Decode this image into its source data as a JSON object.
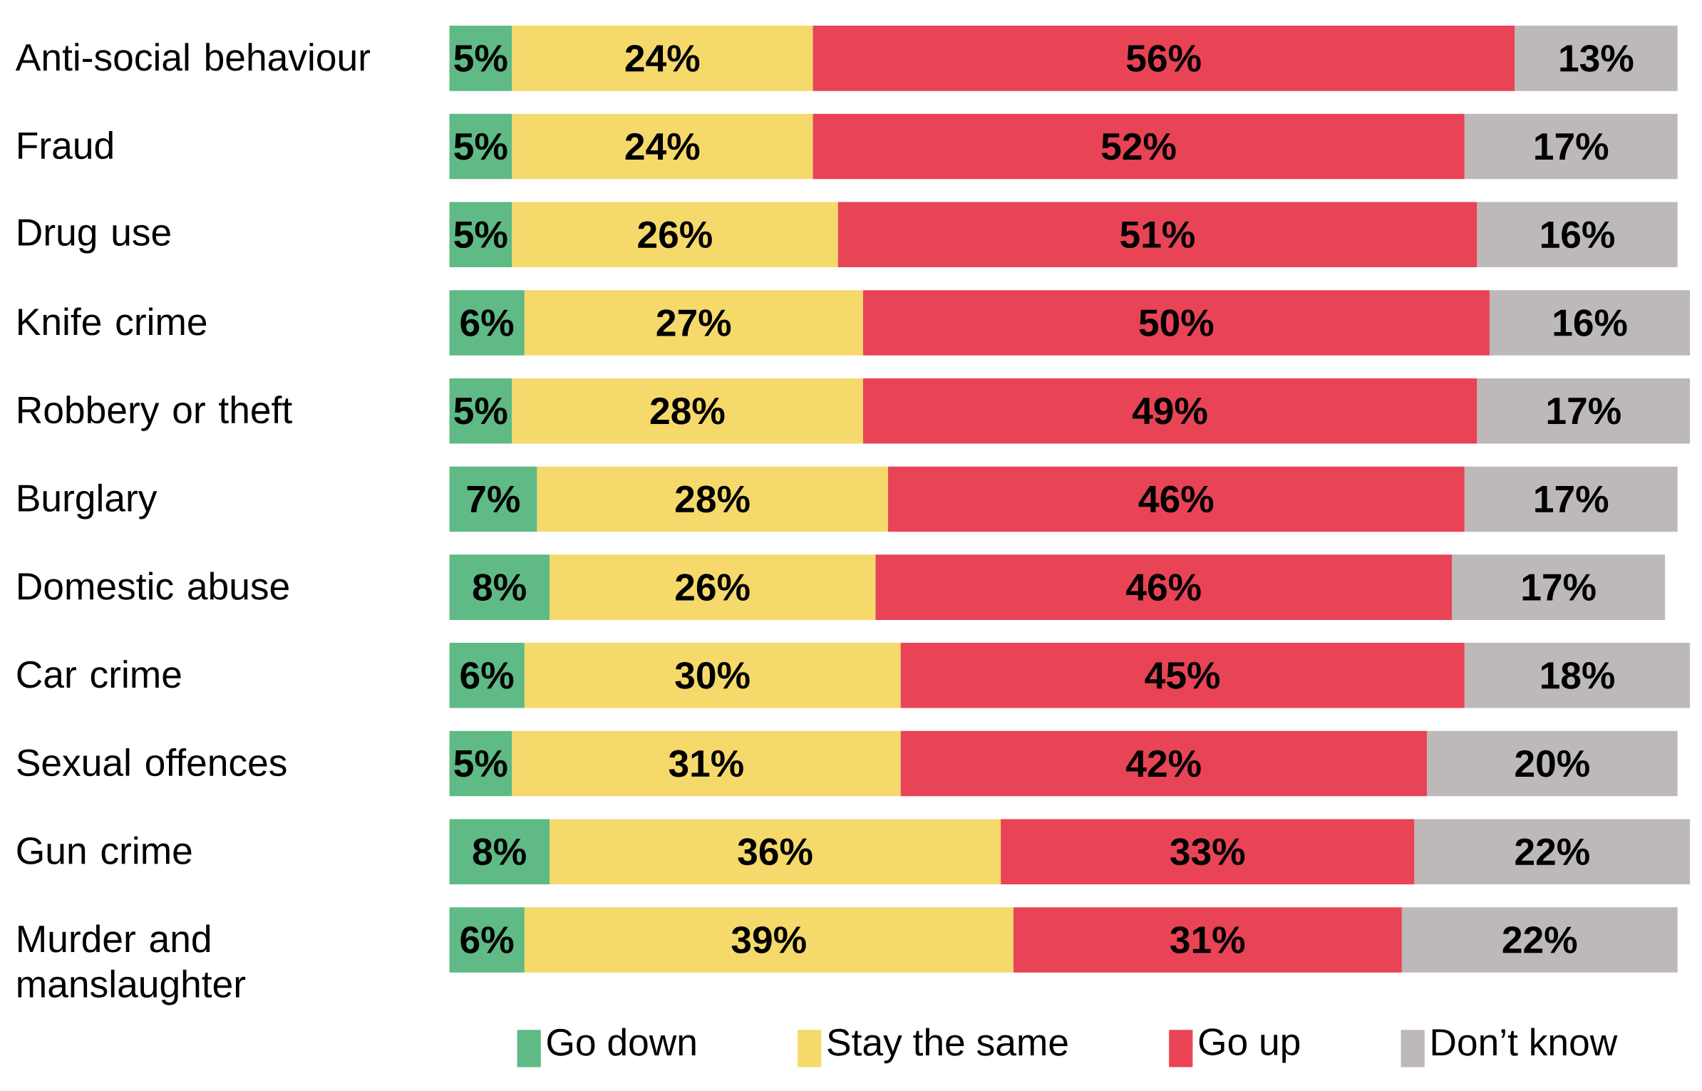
{
  "chart_data": {
    "type": "bar",
    "orientation": "horizontal",
    "stacked": true,
    "legend": "bottom",
    "categories": [
      "Anti-social behaviour",
      "Fraud",
      "Drug use",
      "Knife crime",
      "Robbery or theft",
      "Burglary",
      "Domestic abuse",
      "Car crime",
      "Sexual offences",
      "Gun crime",
      "Murder and manslaughter"
    ],
    "series": [
      {
        "name": "Go down",
        "color": "#5fba85",
        "values": [
          5,
          5,
          5,
          6,
          5,
          7,
          8,
          6,
          5,
          8,
          6
        ],
        "value_labels": [
          "5%",
          "5%",
          "5%",
          "6%",
          "5%",
          "7%",
          "8%",
          "6%",
          "5%",
          "8%",
          "6%"
        ]
      },
      {
        "name": "Stay the same",
        "color": "#f5d96b",
        "values": [
          24,
          24,
          26,
          27,
          28,
          28,
          26,
          30,
          31,
          36,
          39
        ],
        "value_labels": [
          "24%",
          "24%",
          "26%",
          "27%",
          "28%",
          "28%",
          "26%",
          "30%",
          "31%",
          "36%",
          "39%"
        ]
      },
      {
        "name": "Go up",
        "color": "#e84455",
        "values": [
          56,
          52,
          51,
          50,
          49,
          46,
          46,
          45,
          42,
          33,
          31
        ],
        "value_labels": [
          "56%",
          "52%",
          "51%",
          "50%",
          "49%",
          "46%",
          "46%",
          "45%",
          "42%",
          "33%",
          "31%"
        ]
      },
      {
        "name": "Don’t know",
        "color": "#bdb9b9",
        "values": [
          13,
          17,
          16,
          16,
          17,
          17,
          17,
          18,
          20,
          22,
          22
        ],
        "value_labels": [
          "13%",
          "17%",
          "16%",
          "16%",
          "17%",
          "17%",
          "17%",
          "18%",
          "20%",
          "22%",
          "22%"
        ]
      }
    ]
  }
}
